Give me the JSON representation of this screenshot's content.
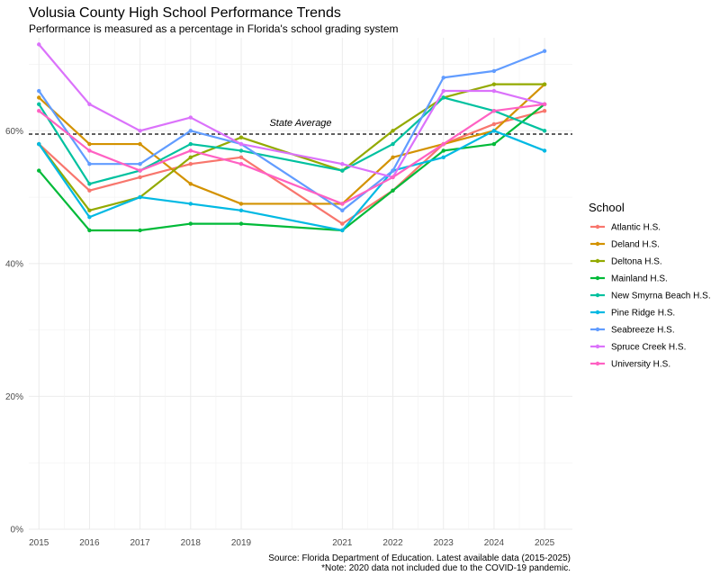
{
  "chart_data": {
    "type": "line",
    "title": "Volusia County High School Performance Trends",
    "subtitle": "Performance is measured as a percentage in Florida's school grading system",
    "x": [
      2015,
      2016,
      2017,
      2018,
      2019,
      2021,
      2022,
      2023,
      2024,
      2025
    ],
    "x_ticks": [
      "2015",
      "2016",
      "2017",
      "2018",
      "2019",
      "2021",
      "2022",
      "2023",
      "2024",
      "2025"
    ],
    "y_ticks": [
      "0%",
      "20%",
      "40%",
      "60%"
    ],
    "ylim": [
      0,
      74
    ],
    "xlim": [
      2014.8,
      2025.55
    ],
    "grid": true,
    "legend_title": "School",
    "legend_position": "right",
    "reference_line": {
      "value": 59.5,
      "label": "State Average"
    },
    "series": [
      {
        "name": "Atlantic H.S.",
        "color": "#F8766D",
        "values": [
          58,
          51,
          53,
          55,
          56,
          46,
          51,
          58,
          61,
          63
        ]
      },
      {
        "name": "Deland H.S.",
        "color": "#D39200",
        "values": [
          65,
          58,
          58,
          52,
          49,
          49,
          56,
          58,
          60,
          67
        ]
      },
      {
        "name": "Deltona H.S.",
        "color": "#93AA00",
        "values": [
          58,
          48,
          50,
          56,
          59,
          54,
          60,
          65,
          67,
          67
        ]
      },
      {
        "name": "Mainland H.S.",
        "color": "#00BA38",
        "values": [
          54,
          45,
          45,
          46,
          46,
          45,
          51,
          57,
          58,
          64
        ]
      },
      {
        "name": "New Smyrna Beach H.S.",
        "color": "#00C19F",
        "values": [
          64,
          52,
          54,
          58,
          57,
          54,
          58,
          65,
          63,
          60
        ]
      },
      {
        "name": "Pine Ridge H.S.",
        "color": "#00B9E3",
        "values": [
          58,
          47,
          50,
          49,
          48,
          45,
          54,
          56,
          60,
          57
        ]
      },
      {
        "name": "Seabreeze H.S.",
        "color": "#619CFF",
        "values": [
          66,
          55,
          55,
          60,
          58,
          48,
          54,
          68,
          69,
          72
        ]
      },
      {
        "name": "Spruce Creek H.S.",
        "color": "#DB72FB",
        "values": [
          73,
          64,
          60,
          62,
          58,
          55,
          53,
          66,
          66,
          64
        ]
      },
      {
        "name": "University H.S.",
        "color": "#FF61C3",
        "values": [
          63,
          57,
          54,
          57,
          55,
          49,
          53,
          58,
          63,
          64
        ]
      }
    ],
    "caption": [
      "Source: Florida Department of Education. Latest available data (2015-2025)",
      "*Note: 2020 data not included due to the COVID-19 pandemic."
    ]
  }
}
